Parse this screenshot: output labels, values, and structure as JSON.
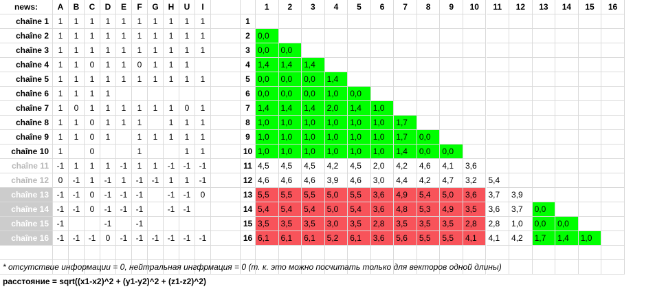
{
  "left_table": {
    "header_label": "news:",
    "columns": [
      "A",
      "B",
      "C",
      "D",
      "E",
      "F",
      "G",
      "H",
      "U",
      "I"
    ],
    "rows": [
      {
        "label": "chaîne 1",
        "style": "normal",
        "values": [
          "1",
          "1",
          "1",
          "1",
          "1",
          "1",
          "1",
          "1",
          "1",
          "1"
        ]
      },
      {
        "label": "chaîne 2",
        "style": "normal",
        "values": [
          "1",
          "1",
          "1",
          "1",
          "1",
          "1",
          "1",
          "1",
          "1",
          "1"
        ]
      },
      {
        "label": "chaîne 3",
        "style": "normal",
        "values": [
          "1",
          "1",
          "1",
          "1",
          "1",
          "1",
          "1",
          "1",
          "1",
          "1"
        ]
      },
      {
        "label": "chaîne 4",
        "style": "normal",
        "values": [
          "1",
          "1",
          "0",
          "1",
          "1",
          "0",
          "1",
          "1",
          "1",
          ""
        ]
      },
      {
        "label": "chaîne 5",
        "style": "normal",
        "values": [
          "1",
          "1",
          "1",
          "1",
          "1",
          "1",
          "1",
          "1",
          "1",
          "1"
        ]
      },
      {
        "label": "chaîne 6",
        "style": "normal",
        "values": [
          "1",
          "1",
          "1",
          "1",
          "",
          "",
          "",
          "",
          "",
          ""
        ]
      },
      {
        "label": "chaîne 7",
        "style": "normal",
        "values": [
          "1",
          "0",
          "1",
          "1",
          "1",
          "1",
          "1",
          "1",
          "0",
          "1"
        ]
      },
      {
        "label": "chaîne 8",
        "style": "normal",
        "values": [
          "1",
          "1",
          "0",
          "1",
          "1",
          "1",
          "",
          "1",
          "1",
          "1"
        ]
      },
      {
        "label": "chaîne 9",
        "style": "normal",
        "values": [
          "1",
          "1",
          "0",
          "1",
          "",
          "1",
          "1",
          "1",
          "1",
          "1"
        ]
      },
      {
        "label": "chaîne 10",
        "style": "normal",
        "values": [
          "1",
          "",
          "0",
          "",
          "",
          "1",
          "",
          "",
          "1",
          "1"
        ]
      },
      {
        "label": "chaîne 11",
        "style": "grey",
        "values": [
          "-1",
          "1",
          "1",
          "1",
          "-1",
          "1",
          "1",
          "-1",
          "-1",
          "-1"
        ]
      },
      {
        "label": "chaîne 12",
        "style": "grey",
        "values": [
          "0",
          "-1",
          "1",
          "-1",
          "1",
          "-1",
          "-1",
          "1",
          "1",
          "-1"
        ]
      },
      {
        "label": "chaîne 13",
        "style": "fill",
        "values": [
          "-1",
          "-1",
          "0",
          "-1",
          "-1",
          "-1",
          "",
          "-1",
          "-1",
          "0"
        ]
      },
      {
        "label": "chaîne 14",
        "style": "fill",
        "values": [
          "-1",
          "-1",
          "0",
          "-1",
          "-1",
          "-1",
          "",
          "-1",
          "-1",
          ""
        ]
      },
      {
        "label": "chaîne 15",
        "style": "fill",
        "values": [
          "-1",
          "",
          "",
          "-1",
          "",
          "-1",
          "",
          "",
          "",
          ""
        ]
      },
      {
        "label": "chaîne 16",
        "style": "fill",
        "values": [
          "-1",
          "-1",
          "-1",
          "0",
          "-1",
          "-1",
          "-1",
          "-1",
          "-1",
          "-1"
        ]
      }
    ]
  },
  "matrix": {
    "column_headers": [
      "1",
      "2",
      "3",
      "4",
      "5",
      "6",
      "7",
      "8",
      "9",
      "10",
      "11",
      "12",
      "13",
      "14",
      "15",
      "16"
    ],
    "row_headers": [
      "1",
      "2",
      "3",
      "4",
      "5",
      "6",
      "7",
      "8",
      "9",
      "10",
      "11",
      "12",
      "13",
      "14",
      "15",
      "16"
    ],
    "rows": [
      [],
      [
        "0,0"
      ],
      [
        "0,0",
        "0,0"
      ],
      [
        "1,4",
        "1,4",
        "1,4"
      ],
      [
        "0,0",
        "0,0",
        "0,0",
        "1,4"
      ],
      [
        "0,0",
        "0,0",
        "0,0",
        "1,0",
        "0,0"
      ],
      [
        "1,4",
        "1,4",
        "1,4",
        "2,0",
        "1,4",
        "1,0"
      ],
      [
        "1,0",
        "1,0",
        "1,0",
        "1,0",
        "1,0",
        "1,0",
        "1,7"
      ],
      [
        "1,0",
        "1,0",
        "1,0",
        "1,0",
        "1,0",
        "1,0",
        "1,7",
        "0,0"
      ],
      [
        "1,0",
        "1,0",
        "1,0",
        "1,0",
        "1,0",
        "1,0",
        "1,4",
        "0,0",
        "0,0"
      ],
      [
        "4,5",
        "4,5",
        "4,5",
        "4,2",
        "4,5",
        "2,0",
        "4,2",
        "4,6",
        "4,1",
        "3,6"
      ],
      [
        "4,6",
        "4,6",
        "4,6",
        "3,9",
        "4,6",
        "3,0",
        "4,4",
        "4,2",
        "4,7",
        "3,2",
        "5,4"
      ],
      [
        "5,5",
        "5,5",
        "5,5",
        "5,0",
        "5,5",
        "3,6",
        "4,9",
        "5,4",
        "5,0",
        "3,6",
        "3,7",
        "3,9"
      ],
      [
        "5,4",
        "5,4",
        "5,4",
        "5,0",
        "5,4",
        "3,6",
        "4,8",
        "5,3",
        "4,9",
        "3,5",
        "3,6",
        "3,7",
        "0,0"
      ],
      [
        "3,5",
        "3,5",
        "3,5",
        "3,0",
        "3,5",
        "2,8",
        "3,5",
        "3,5",
        "3,5",
        "2,8",
        "2,8",
        "1,0",
        "0,0",
        "0,0"
      ],
      [
        "6,1",
        "6,1",
        "6,1",
        "5,2",
        "6,1",
        "3,6",
        "5,6",
        "5,5",
        "5,5",
        "4,1",
        "4,1",
        "4,2",
        "1,7",
        "1,4",
        "1,0"
      ]
    ],
    "colors": {
      "green": "#00ff00",
      "red": "#f8535a",
      "grey_fill": "#cccccc",
      "grey_text": "#b7b7b7"
    }
  },
  "notes": {
    "footnote": "* отсутствие информации = 0, нейтральная ингфрмация = 0 (т. к. это можно посчитать только для векторов одной длины)",
    "formula": "расстояние = sqrt((x1-x2)^2 + (y1-y2)^2  + (z1-z2)^2)"
  }
}
